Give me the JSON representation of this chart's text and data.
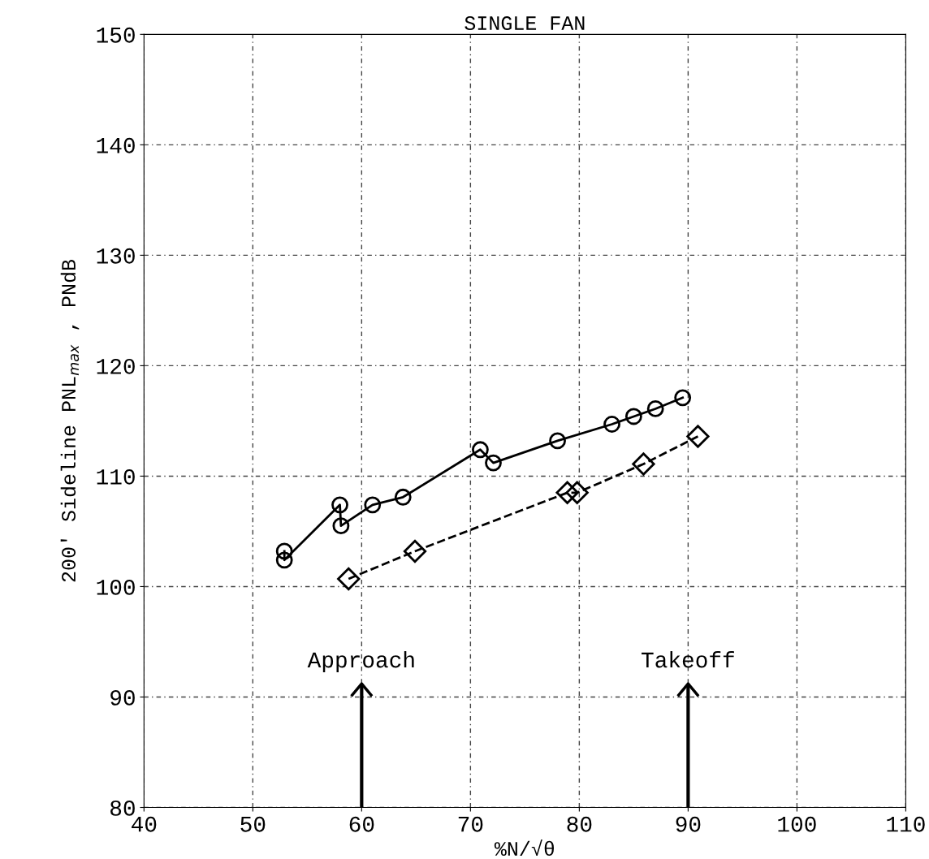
{
  "chart_data": {
    "type": "line",
    "title": "SINGLE FAN",
    "xlabel": "%N/√θ",
    "ylabel": "200' Sideline PNL$_{max}$ , PNdB",
    "xlim": [
      40,
      110
    ],
    "xticks": [
      40,
      50,
      60,
      70,
      80,
      90,
      100,
      110
    ],
    "ylim": [
      80,
      150
    ],
    "yticks": [
      80,
      90,
      100,
      110,
      120,
      130,
      140,
      150
    ],
    "grid": true,
    "series": [
      {
        "color": "#000000",
        "marker": "circle",
        "line_style": "solid",
        "x": [
          52.9,
          52.9,
          58.0,
          58.1,
          61.0,
          63.8,
          70.9,
          72.1,
          78.0,
          83.0,
          85.0,
          87.0,
          89.5
        ],
        "values": [
          103.2,
          102.4,
          107.4,
          105.5,
          107.4,
          108.1,
          112.4,
          111.2,
          113.2,
          114.7,
          115.4,
          116.1,
          117.1
        ]
      },
      {
        "color": "#000000",
        "marker": "diamond",
        "line_style": "dashed",
        "x": [
          58.8,
          64.9,
          78.9,
          79.8,
          85.9,
          90.9
        ],
        "values": [
          100.7,
          103.2,
          108.5,
          108.5,
          111.1,
          113.6
        ]
      }
    ],
    "ref_lines": [
      {
        "axis": "x",
        "value": 60,
        "label": "Approach"
      },
      {
        "axis": "x",
        "value": 90,
        "label": "Takeoff"
      }
    ]
  }
}
